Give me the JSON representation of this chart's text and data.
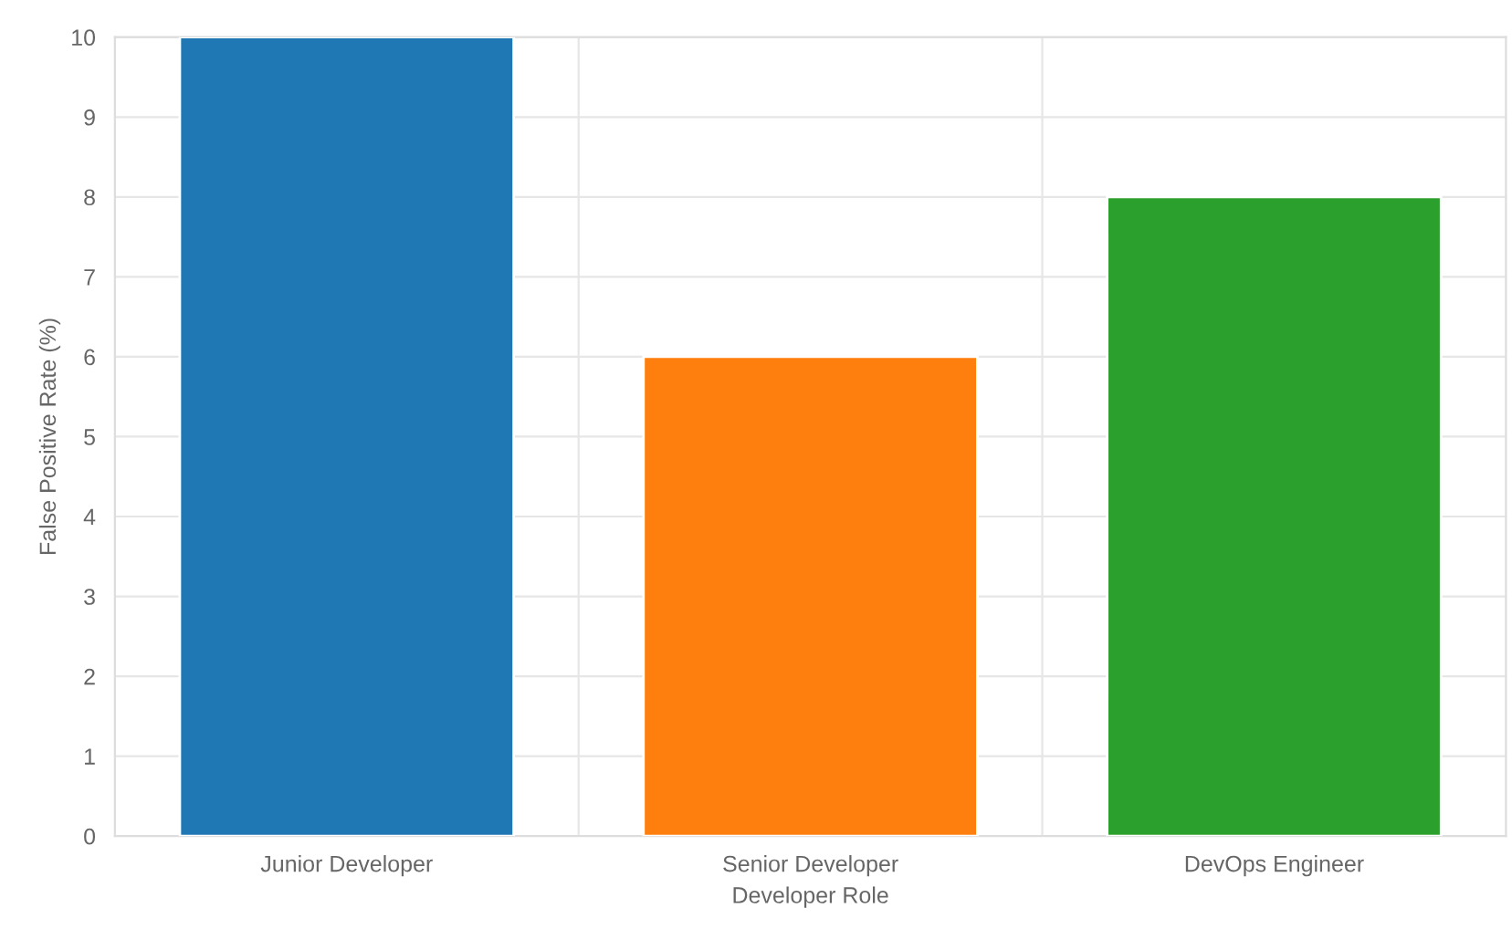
{
  "chart_data": {
    "type": "bar",
    "xlabel": "Developer Role",
    "ylabel": "False Positive Rate (%)",
    "categories": [
      "Junior Developer",
      "Senior Developer",
      "DevOps Engineer"
    ],
    "values": [
      10,
      6,
      8
    ],
    "colors": [
      "#1f77b4",
      "#ff7f0e",
      "#2ca02c"
    ],
    "ylim": [
      0,
      10
    ],
    "yticks": [
      0,
      1,
      2,
      3,
      4,
      5,
      6,
      7,
      8,
      9,
      10
    ],
    "grid": true,
    "legend": false
  }
}
